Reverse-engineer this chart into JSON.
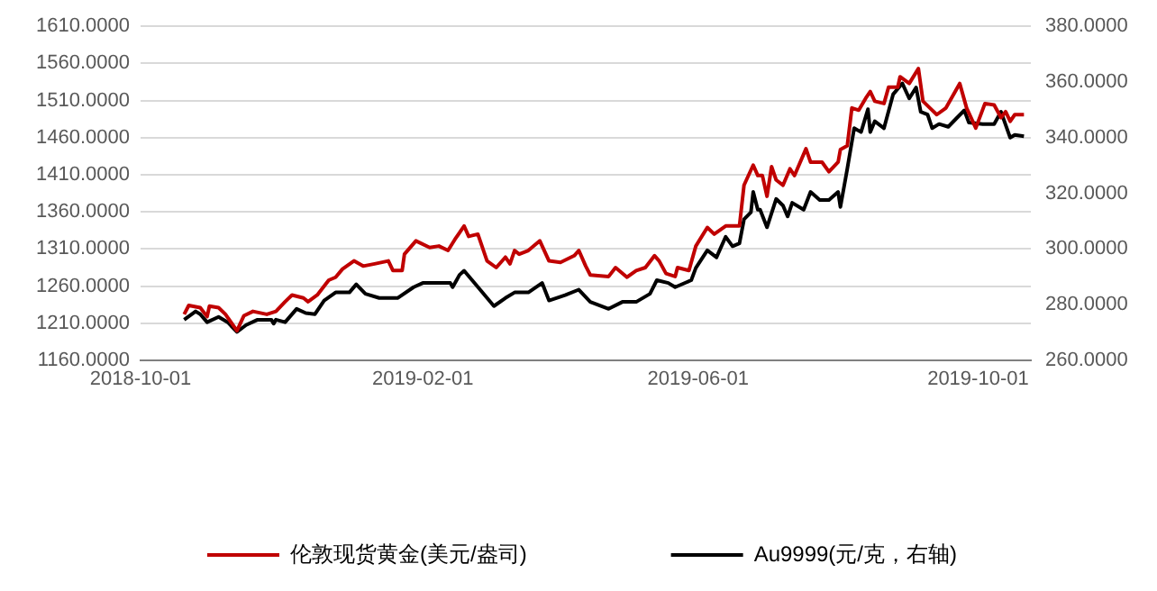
{
  "chart_data": {
    "type": "line",
    "xlim": [
      "2018-10-01",
      "2019-10-24"
    ],
    "xticks": [
      "2018-10-01",
      "2019-02-01",
      "2019-06-01",
      "2019-10-01"
    ],
    "ylim": [
      1160,
      1610
    ],
    "yticks": [
      {
        "value": 1160,
        "label": "1160.0000"
      },
      {
        "value": 1210,
        "label": "1210.0000"
      },
      {
        "value": 1260,
        "label": "1260.0000"
      },
      {
        "value": 1310,
        "label": "1310.0000"
      },
      {
        "value": 1360,
        "label": "1360.0000"
      },
      {
        "value": 1410,
        "label": "1410.0000"
      },
      {
        "value": 1460,
        "label": "1460.0000"
      },
      {
        "value": 1510,
        "label": "1510.0000"
      },
      {
        "value": 1560,
        "label": "1560.0000"
      },
      {
        "value": 1610,
        "label": "1610.0000"
      }
    ],
    "y2lim": [
      260,
      380
    ],
    "y2ticks": [
      {
        "value": 260,
        "label": "260.0000"
      },
      {
        "value": 280,
        "label": "280.0000"
      },
      {
        "value": 300,
        "label": "300.0000"
      },
      {
        "value": 320,
        "label": "320.0000"
      },
      {
        "value": 340,
        "label": "340.0000"
      },
      {
        "value": 360,
        "label": "360.0000"
      },
      {
        "value": 380,
        "label": "380.0000"
      }
    ],
    "grid": "y",
    "legend": "bottom",
    "marker": "none",
    "line_style": "solid",
    "series": [
      {
        "name": "伦敦现货黄金(美元/盎司)",
        "color": "#c00000",
        "x": [
          "2018-10-20",
          "2018-10-22",
          "2018-10-27",
          "2018-10-30",
          "2018-10-31",
          "2018-11-04",
          "2018-11-07",
          "2018-11-12",
          "2018-11-15",
          "2018-11-19",
          "2018-11-25",
          "2018-11-29",
          "2018-12-03",
          "2018-12-06",
          "2018-12-11",
          "2018-12-13",
          "2018-12-17",
          "2018-12-22",
          "2018-12-25",
          "2018-12-28",
          "2019-01-02",
          "2019-01-06",
          "2019-01-11",
          "2019-01-17",
          "2019-01-19",
          "2019-01-23",
          "2019-01-24",
          "2019-01-29",
          "2019-02-04",
          "2019-02-08",
          "2019-02-12",
          "2019-02-15",
          "2019-02-19",
          "2019-02-21",
          "2019-02-25",
          "2019-03-01",
          "2019-03-05",
          "2019-03-09",
          "2019-03-11",
          "2019-03-13",
          "2019-03-15",
          "2019-03-19",
          "2019-03-24",
          "2019-03-28",
          "2019-04-02",
          "2019-04-08",
          "2019-04-10",
          "2019-04-13",
          "2019-04-15",
          "2019-04-23",
          "2019-04-26",
          "2019-05-01",
          "2019-05-05",
          "2019-05-09",
          "2019-05-13",
          "2019-05-15",
          "2019-05-18",
          "2019-05-22",
          "2019-05-23",
          "2019-05-28",
          "2019-05-31",
          "2019-06-05",
          "2019-06-08",
          "2019-06-13",
          "2019-06-19",
          "2019-06-21",
          "2019-06-25",
          "2019-06-27",
          "2019-06-29",
          "2019-07-01",
          "2019-07-03",
          "2019-07-05",
          "2019-07-08",
          "2019-07-11",
          "2019-07-13",
          "2019-07-18",
          "2019-07-20",
          "2019-07-25",
          "2019-07-28",
          "2019-08-01",
          "2019-08-02",
          "2019-08-05",
          "2019-08-07",
          "2019-08-10",
          "2019-08-13",
          "2019-08-15",
          "2019-08-17",
          "2019-08-21",
          "2019-08-23",
          "2019-08-27",
          "2019-08-28",
          "2019-09-01",
          "2019-09-05",
          "2019-09-07",
          "2019-09-10",
          "2019-09-13",
          "2019-09-17",
          "2019-09-21",
          "2019-09-23",
          "2019-09-26",
          "2019-09-30",
          "2019-10-04",
          "2019-10-08",
          "2019-10-11",
          "2019-10-13",
          "2019-10-15",
          "2019-10-17",
          "2019-10-21"
        ],
        "values": [
          1222,
          1234,
          1231,
          1219,
          1233,
          1231,
          1222,
          1200,
          1220,
          1226,
          1222,
          1226,
          1239,
          1248,
          1244,
          1239,
          1248,
          1268,
          1272,
          1283,
          1294,
          1287,
          1290,
          1294,
          1281,
          1281,
          1303,
          1321,
          1312,
          1314,
          1308,
          1323,
          1341,
          1327,
          1330,
          1294,
          1285,
          1299,
          1290,
          1308,
          1303,
          1308,
          1321,
          1294,
          1292,
          1301,
          1308,
          1287,
          1275,
          1273,
          1285,
          1272,
          1281,
          1285,
          1301,
          1294,
          1277,
          1273,
          1285,
          1281,
          1314,
          1339,
          1330,
          1341,
          1341,
          1396,
          1423,
          1409,
          1409,
          1381,
          1421,
          1403,
          1396,
          1418,
          1409,
          1445,
          1427,
          1427,
          1414,
          1427,
          1444,
          1449,
          1500,
          1497,
          1513,
          1522,
          1509,
          1506,
          1528,
          1528,
          1542,
          1533,
          1553,
          1509,
          1500,
          1491,
          1500,
          1522,
          1533,
          1500,
          1473,
          1506,
          1504,
          1487,
          1495,
          1482,
          1491,
          1491
        ]
      },
      {
        "name": "Au9999(元/克，右轴)",
        "color": "#000000",
        "axis": "y2",
        "x": [
          "2018-10-20",
          "2018-10-25",
          "2018-10-27",
          "2018-10-30",
          "2018-11-04",
          "2018-11-08",
          "2018-11-12",
          "2018-11-16",
          "2018-11-21",
          "2018-11-27",
          "2018-11-28",
          "2018-11-29",
          "2018-12-03",
          "2018-12-08",
          "2018-12-12",
          "2018-12-16",
          "2018-12-20",
          "2018-12-25",
          "2018-12-31",
          "2019-01-03",
          "2019-01-07",
          "2019-01-13",
          "2019-01-21",
          "2019-01-28",
          "2019-02-01",
          "2019-02-13",
          "2019-02-14",
          "2019-02-17",
          "2019-02-19",
          "2019-02-23",
          "2019-03-04",
          "2019-03-09",
          "2019-03-13",
          "2019-03-19",
          "2019-03-25",
          "2019-03-28",
          "2019-04-04",
          "2019-04-10",
          "2019-04-15",
          "2019-04-23",
          "2019-04-29",
          "2019-05-05",
          "2019-05-11",
          "2019-05-14",
          "2019-05-19",
          "2019-05-22",
          "2019-05-29",
          "2019-05-31",
          "2019-06-05",
          "2019-06-09",
          "2019-06-13",
          "2019-06-16",
          "2019-06-19",
          "2019-06-21",
          "2019-06-24",
          "2019-06-25",
          "2019-06-27",
          "2019-06-28",
          "2019-07-01",
          "2019-07-05",
          "2019-07-08",
          "2019-07-10",
          "2019-07-12",
          "2019-07-17",
          "2019-07-20",
          "2019-07-24",
          "2019-07-28",
          "2019-08-01",
          "2019-08-02",
          "2019-08-05",
          "2019-08-08",
          "2019-08-11",
          "2019-08-14",
          "2019-08-15",
          "2019-08-17",
          "2019-08-21",
          "2019-08-25",
          "2019-08-29",
          "2019-09-01",
          "2019-09-04",
          "2019-09-06",
          "2019-09-09",
          "2019-09-11",
          "2019-09-14",
          "2019-09-18",
          "2019-09-22",
          "2019-09-25",
          "2019-09-27",
          "2019-10-03",
          "2019-10-08",
          "2019-10-11",
          "2019-10-15",
          "2019-10-17",
          "2019-10-21"
        ],
        "values": [
          274.6,
          277.6,
          276.6,
          273.7,
          275.6,
          273.7,
          270.2,
          272.7,
          274.6,
          274.6,
          273.2,
          274.6,
          273.7,
          278.5,
          277,
          276.6,
          281.5,
          284.4,
          284.4,
          287.3,
          283.9,
          282.4,
          282.4,
          286.3,
          287.8,
          287.8,
          286.3,
          290.7,
          292.2,
          288.3,
          279.5,
          282.4,
          284.4,
          284.4,
          287.8,
          281.5,
          283.4,
          285.4,
          281,
          278.5,
          281,
          281,
          283.9,
          288.8,
          287.8,
          286.3,
          288.8,
          293.2,
          299.5,
          297,
          304.4,
          301,
          302,
          310.7,
          313.2,
          320.5,
          314.1,
          314.1,
          307.8,
          318,
          315.6,
          311.7,
          316.6,
          314.1,
          320.5,
          317.6,
          317.6,
          320.5,
          315.1,
          328.8,
          343.4,
          342,
          350.2,
          342,
          345.9,
          343.4,
          355.6,
          359.5,
          354.1,
          358,
          349.3,
          348.3,
          343.4,
          344.9,
          343.9,
          347.3,
          349.8,
          345.4,
          344.9,
          344.9,
          349.3,
          340,
          341,
          340.5
        ]
      }
    ]
  }
}
